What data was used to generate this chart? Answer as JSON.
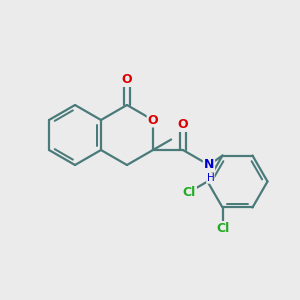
{
  "bg_color": "#ebebeb",
  "bond_color": "#4a7a7a",
  "bond_width": 1.6,
  "atom_colors": {
    "O": "#dd0000",
    "N": "#0000cc",
    "Cl": "#22aa22",
    "C": "#4a7a7a"
  },
  "font_size": 9,
  "font_size_sub": 7.5
}
